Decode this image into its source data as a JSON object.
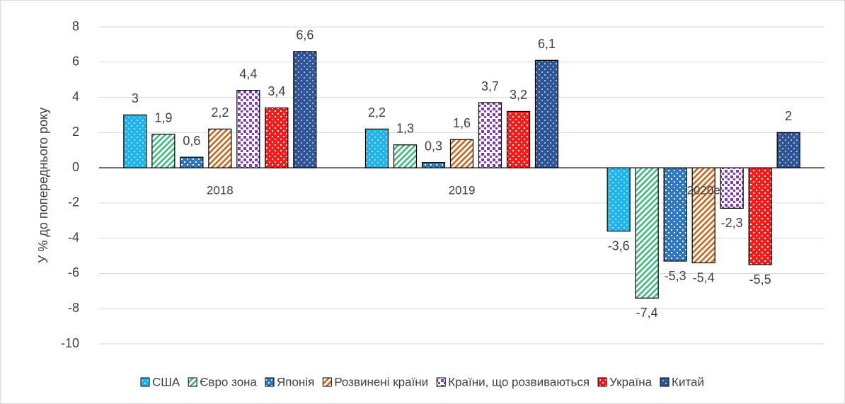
{
  "chart_data": {
    "type": "bar",
    "y_label": "У % до попереднього року",
    "categories": [
      "2018",
      "2019",
      "2020е"
    ],
    "series": [
      {
        "name": "США",
        "color": "#1fb4ec",
        "values": [
          3,
          2.2,
          -3.6
        ],
        "value_labels": [
          "3",
          "2,2",
          "-3,6"
        ]
      },
      {
        "name": "Євро зона",
        "color": "#3dbb7e",
        "values": [
          1.9,
          1.3,
          -7.4
        ],
        "value_labels": [
          "1,9",
          "1,3",
          "-7,4"
        ]
      },
      {
        "name": "Японія",
        "color": "#2e78c2",
        "values": [
          0.6,
          0.3,
          -5.3
        ],
        "value_labels": [
          "0,6",
          "0,3",
          "-5,3"
        ]
      },
      {
        "name": "Розвинені країни",
        "color": "#c8661e",
        "values": [
          2.2,
          1.6,
          -5.4
        ],
        "value_labels": [
          "2,2",
          "1,6",
          "-5,4"
        ]
      },
      {
        "name": "Країни, що розвиваються",
        "color": "#7b3fb0",
        "values": [
          4.4,
          3.7,
          -2.3
        ],
        "value_labels": [
          "4,4",
          "3,7",
          "-2,3"
        ]
      },
      {
        "name": "Україна",
        "color": "#ff1a1a",
        "values": [
          3.4,
          3.2,
          -5.5
        ],
        "value_labels": [
          "3,4",
          "3,2",
          "-5,5"
        ]
      },
      {
        "name": "Китай",
        "color": "#2f5597",
        "values": [
          6.6,
          6.1,
          2
        ],
        "value_labels": [
          "6,6",
          "6,1",
          "2"
        ]
      }
    ],
    "ylim": [
      -10,
      8
    ],
    "yticks": [
      -10,
      -8,
      -6,
      -4,
      -2,
      0,
      2,
      4,
      6,
      8
    ],
    "grid": true,
    "legend": "bottom"
  }
}
